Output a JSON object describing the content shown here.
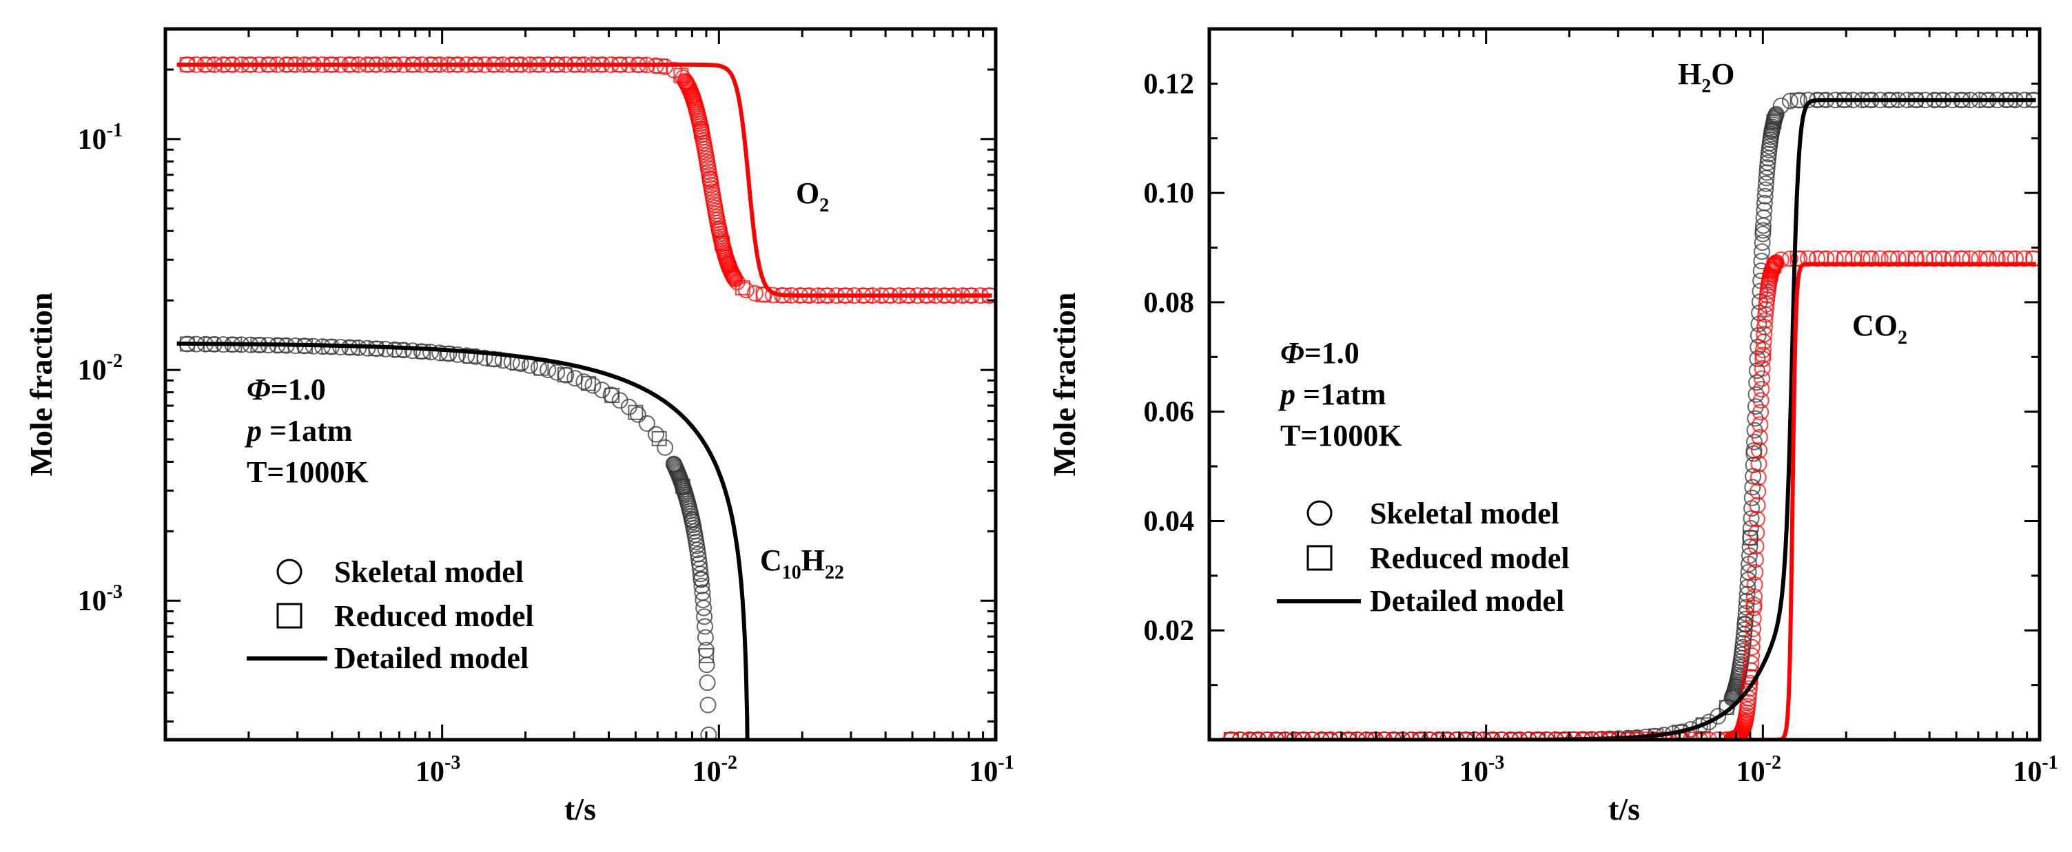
{
  "chart_data": [
    {
      "type": "line",
      "xscale": "log",
      "yscale": "log",
      "xlabel": "t/s",
      "ylabel": "Mole fraction",
      "xlim": [
        0.0001,
        0.1
      ],
      "ylim": [
        0.00025,
        0.3
      ],
      "grid": false,
      "x_ticks": [
        {
          "value": 0.001,
          "base": "10",
          "exp": "-3"
        },
        {
          "value": 0.01,
          "base": "10",
          "exp": "-2"
        },
        {
          "value": 0.1,
          "base": "10",
          "exp": "-1"
        }
      ],
      "y_ticks": [
        {
          "value": 0.001,
          "base": "10",
          "exp": "-3"
        },
        {
          "value": 0.01,
          "base": "10",
          "exp": "-2"
        },
        {
          "value": 0.1,
          "base": "10",
          "exp": "-1"
        }
      ],
      "conditions": {
        "phi": "=1.0",
        "pressure": " =1atm",
        "temperature": "T=1000K",
        "phi_symbol": "Φ",
        "p_symbol": "p"
      },
      "legend": {
        "placement": "bottom-left",
        "entries": [
          {
            "marker": "circle",
            "label": "Skeletal model"
          },
          {
            "marker": "square",
            "label": "Reduced model"
          },
          {
            "marker": "line",
            "label": "Detailed model"
          }
        ]
      },
      "species_labels": {
        "o2": {
          "main": "O",
          "sub": "2"
        },
        "fuel": {
          "c": "C",
          "c_sub": "10",
          "h": "H",
          "h_sub": "22"
        }
      },
      "series": [
        {
          "name": "O2",
          "color": "#ff0000",
          "initial": 0.21,
          "final": 0.021,
          "detailed_ignition_s": 0.0128,
          "skeletal_ignition_s": 0.0093,
          "reduced_ignition_s": 0.0093
        },
        {
          "name": "C10H22",
          "color": "#000000",
          "initial": 0.0131,
          "final": 0.00025,
          "detailed_ignition_s": 0.0128,
          "skeletal_ignition_s": 0.0093,
          "reduced_ignition_s": 0.0093
        }
      ]
    },
    {
      "type": "line",
      "xscale": "log",
      "yscale": "linear",
      "xlabel": "t/s",
      "ylabel": "Mole fraction",
      "xlim": [
        0.0001,
        0.1
      ],
      "ylim": [
        0,
        0.13
      ],
      "grid": false,
      "x_ticks": [
        {
          "value": 0.001,
          "base": "10",
          "exp": "-3"
        },
        {
          "value": 0.01,
          "base": "10",
          "exp": "-2"
        },
        {
          "value": 0.1,
          "base": "10",
          "exp": "-1"
        }
      ],
      "y_ticks": [
        {
          "value": 0.02,
          "label": "0.02"
        },
        {
          "value": 0.04,
          "label": "0.04"
        },
        {
          "value": 0.06,
          "label": "0.06"
        },
        {
          "value": 0.08,
          "label": "0.08"
        },
        {
          "value": 0.1,
          "label": "0.10"
        },
        {
          "value": 0.12,
          "label": "0.12"
        }
      ],
      "conditions": {
        "phi": "=1.0",
        "pressure": " =1atm",
        "temperature": "T=1000K",
        "phi_symbol": "Φ",
        "p_symbol": "p"
      },
      "legend": {
        "placement": "center-left",
        "entries": [
          {
            "marker": "circle",
            "label": "Skeletal model"
          },
          {
            "marker": "square",
            "label": "Reduced model"
          },
          {
            "marker": "line",
            "label": "Detailed model"
          }
        ]
      },
      "species_labels": {
        "h2o": {
          "h": "H",
          "sub": "2",
          "o": "O"
        },
        "co2": {
          "main": "CO",
          "sub": "2"
        }
      },
      "series": [
        {
          "name": "H2O",
          "color": "#000000",
          "initial": 0.0,
          "final": 0.117,
          "detailed_ignition_s": 0.0128,
          "skeletal_ignition_s": 0.0093,
          "reduced_ignition_s": 0.0093
        },
        {
          "name": "CO2",
          "color": "#ff0000",
          "initial": 0.0,
          "final": 0.087,
          "skeletal_final": 0.088,
          "detailed_ignition_s": 0.0128,
          "skeletal_ignition_s": 0.0093,
          "reduced_ignition_s": 0.0093
        }
      ]
    }
  ]
}
